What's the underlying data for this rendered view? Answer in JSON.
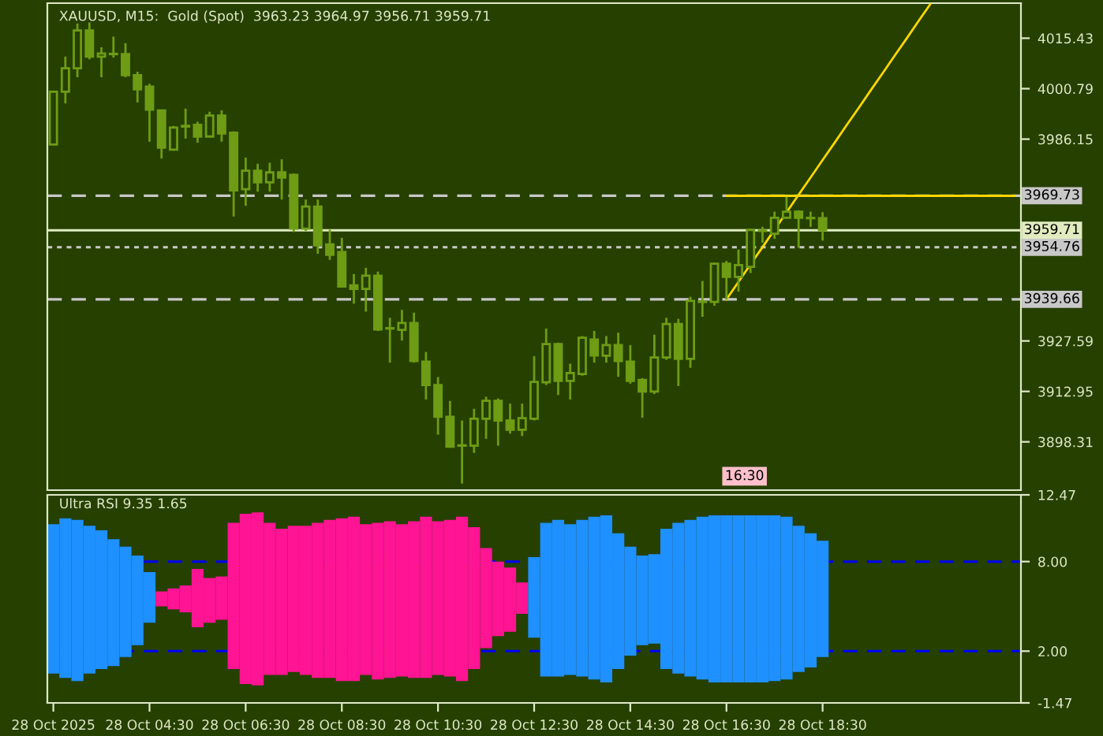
{
  "chart_data": [
    {
      "type": "candlestick",
      "title": "XAUUSD, M15:  Gold (Spot)  3963.23 3964.97 3956.71 3959.71",
      "color": "#6e9c14",
      "tick_labels": "y",
      "categories": [
        null,
        null,
        null,
        null,
        null,
        null,
        null,
        null,
        null,
        null,
        null,
        null,
        null,
        null,
        null,
        null,
        null,
        null,
        null,
        null,
        null,
        null,
        null,
        null,
        null,
        null,
        null,
        null,
        null,
        null,
        null,
        null,
        null,
        null,
        null,
        null,
        null,
        null,
        null,
        null,
        null,
        null,
        null,
        null,
        null,
        null,
        null,
        null,
        null,
        null,
        null,
        null,
        null,
        null,
        null,
        null,
        null,
        null,
        null,
        null,
        null,
        null,
        null,
        null,
        null,
        null,
        null,
        null,
        null,
        null,
        null,
        null,
        null,
        null,
        null,
        null,
        null,
        null,
        null,
        null,
        null
      ],
      "ohlc": [
        [
          3984.6,
          3999.9,
          3984.6,
          3999.9
        ],
        [
          3999.9,
          4010.1,
          3996.5,
          4006.7
        ],
        [
          4006.7,
          4019.7,
          4004.1,
          4017.7
        ],
        [
          4017.7,
          4020.0,
          4009.3,
          4010.1
        ],
        [
          4010.1,
          4012.8,
          4004.1,
          4011.0
        ],
        [
          4010.8,
          4015.9,
          4009.8,
          4010.9
        ],
        [
          4010.8,
          4014.0,
          4004.1,
          4004.7
        ],
        [
          4004.7,
          4005.7,
          3996.8,
          4000.6
        ],
        [
          4001.4,
          4002.2,
          3985.4,
          3994.7
        ],
        [
          3994.5,
          3994.5,
          3980.5,
          3983.7
        ],
        [
          3983.1,
          3990.0,
          3982.8,
          3989.5
        ],
        [
          3989.8,
          3995.0,
          3986.3,
          3990.0
        ],
        [
          3990.3,
          3991.2,
          3985.1,
          3986.9
        ],
        [
          3986.9,
          3994.1,
          3986.9,
          3993.0
        ],
        [
          3993.0,
          3994.5,
          3985.4,
          3987.8
        ],
        [
          3988.0,
          3988.4,
          3963.7,
          3971.3
        ],
        [
          3971.6,
          3980.8,
          3966.8,
          3977.0
        ],
        [
          3977.0,
          3979.0,
          3970.9,
          3973.6
        ],
        [
          3973.6,
          3979.3,
          3970.9,
          3976.5
        ],
        [
          3976.5,
          3980.3,
          3968.6,
          3975.0
        ],
        [
          3975.8,
          3976.2,
          3959.2,
          3960.2
        ],
        [
          3960.2,
          3968.6,
          3959.5,
          3966.6
        ],
        [
          3966.6,
          3968.6,
          3952.9,
          3955.3
        ],
        [
          3955.6,
          3959.9,
          3951.1,
          3952.6
        ],
        [
          3953.4,
          3957.5,
          3943.4,
          3943.4
        ],
        [
          3943.7,
          3947.0,
          3938.4,
          3942.7
        ],
        [
          3942.7,
          3948.8,
          3936.1,
          3946.5
        ],
        [
          3946.5,
          3947.7,
          3930.5,
          3930.9
        ],
        [
          3931.2,
          3934.3,
          3921.3,
          3931.3
        ],
        [
          3930.8,
          3936.6,
          3927.7,
          3932.8
        ],
        [
          3932.8,
          3935.8,
          3921.3,
          3921.8
        ],
        [
          3921.6,
          3924.4,
          3910.6,
          3914.8
        ],
        [
          3914.8,
          3917.1,
          3900.4,
          3905.6
        ],
        [
          3905.6,
          3910.2,
          3896.6,
          3896.9
        ],
        [
          3897.2,
          3904.5,
          3886.2,
          3897.3
        ],
        [
          3897.2,
          3907.9,
          3895.1,
          3905.0
        ],
        [
          3905.0,
          3911.4,
          3899.2,
          3910.2
        ],
        [
          3910.2,
          3910.9,
          3897.2,
          3904.5
        ],
        [
          3904.5,
          3909.4,
          3900.7,
          3901.8
        ],
        [
          3901.8,
          3909.4,
          3900.0,
          3905.2
        ],
        [
          3905.0,
          3923.2,
          3904.5,
          3915.7
        ],
        [
          3915.6,
          3931.2,
          3914.8,
          3926.7
        ],
        [
          3926.7,
          3927.1,
          3911.9,
          3916.0
        ],
        [
          3916.0,
          3921.0,
          3910.6,
          3918.3
        ],
        [
          3918.0,
          3929.0,
          3917.5,
          3928.5
        ],
        [
          3928.0,
          3930.5,
          3921.3,
          3923.4
        ],
        [
          3923.3,
          3929.0,
          3921.3,
          3926.4
        ],
        [
          3926.4,
          3930.0,
          3917.2,
          3921.8
        ],
        [
          3921.6,
          3926.4,
          3915.2,
          3916.0
        ],
        [
          3916.3,
          3916.8,
          3905.3,
          3912.9
        ],
        [
          3912.9,
          3929.4,
          3912.2,
          3922.8
        ],
        [
          3922.8,
          3934.3,
          3922.1,
          3932.5
        ],
        [
          3932.5,
          3934.0,
          3914.5,
          3922.4
        ],
        [
          3922.4,
          3940.4,
          3919.8,
          3939.2
        ],
        [
          3938.9,
          3945.0,
          3934.6,
          3939.0
        ],
        [
          3938.9,
          3950.3,
          3937.8,
          3950.0
        ],
        [
          3950.0,
          3950.8,
          3939.6,
          3946.2
        ],
        [
          3946.2,
          3954.1,
          3941.9,
          3949.6
        ],
        [
          3949.1,
          3960.2,
          3947.3,
          3959.8
        ],
        [
          3959.5,
          3960.7,
          3956.1,
          3959.6
        ],
        [
          3958.7,
          3965.1,
          3957.2,
          3963.3
        ],
        [
          3963.3,
          3969.4,
          3963.1,
          3965.1
        ],
        [
          3965.1,
          3965.5,
          3954.6,
          3963.3
        ],
        [
          3963.3,
          3965.1,
          3960.7,
          3963.2
        ],
        [
          3963.23,
          3964.97,
          3956.71,
          3959.71
        ],
        null,
        null,
        null,
        null,
        null,
        null,
        null,
        null,
        null,
        null,
        null,
        null,
        null,
        null,
        null,
        null
      ],
      "ylim": [
        3884.3,
        4025.6
      ],
      "yticks": [
        4015.43,
        4000.79,
        3986.15,
        3927.59,
        3912.95,
        3898.31
      ],
      "ref_lines": [
        {
          "axis": "y",
          "value": 3969.73,
          "label": "3969.73",
          "color": "#c8c8c8",
          "line_style": "dashed"
        },
        {
          "axis": "y",
          "value": 3959.71,
          "label": "3959.71",
          "color": "#e0ecc0",
          "line_style": "solid"
        },
        {
          "axis": "y",
          "value": 3954.76,
          "label": "3954.76",
          "color": "#c8c8c8",
          "line_style": "dotted"
        },
        {
          "axis": "y",
          "value": 3939.66,
          "label": "3939.66",
          "color": "#c8c8c8",
          "line_style": "dashed"
        }
      ],
      "series": [
        {
          "type": "line",
          "color": "#ffd700",
          "values": [
            null,
            null,
            null,
            null,
            null,
            null,
            null,
            null,
            null,
            null,
            null,
            null,
            null,
            null,
            null,
            null,
            null,
            null,
            null,
            null,
            null,
            null,
            null,
            null,
            null,
            null,
            null,
            null,
            null,
            null,
            null,
            null,
            null,
            null,
            null,
            null,
            null,
            null,
            null,
            null,
            null,
            null,
            null,
            null,
            null,
            null,
            null,
            null,
            null,
            null,
            null,
            null,
            null,
            null,
            null,
            null,
            3939.7,
            3944.7,
            3949.8,
            3954.8,
            3959.9,
            3964.9,
            3970.0,
            3975.0,
            3980.1,
            3985.1,
            3990.2,
            3995.2,
            4000.3,
            4005.3,
            4010.4,
            4015.4,
            4020.5,
            4025.5,
            null,
            null,
            null,
            null,
            null,
            null,
            null
          ]
        },
        {
          "type": "line",
          "color": "#ffd700",
          "values": [
            null,
            null,
            null,
            null,
            null,
            null,
            null,
            null,
            null,
            null,
            null,
            null,
            null,
            null,
            null,
            null,
            null,
            null,
            null,
            null,
            null,
            null,
            null,
            null,
            null,
            null,
            null,
            null,
            null,
            null,
            null,
            null,
            null,
            null,
            null,
            null,
            null,
            null,
            null,
            null,
            null,
            null,
            null,
            null,
            null,
            null,
            null,
            null,
            null,
            null,
            null,
            null,
            null,
            null,
            null,
            null,
            3969.7,
            3969.7,
            3969.7,
            3969.7,
            3969.7,
            3969.7,
            3969.7,
            3969.7,
            3969.7,
            3969.7,
            3969.7,
            3969.7,
            3969.7,
            3969.7,
            3969.7,
            3969.7,
            3969.7,
            3969.7,
            3969.7,
            3969.7,
            3969.7,
            3969.7,
            3969.7,
            3969.7,
            3969.7
          ]
        }
      ],
      "annotations": [
        "16:30"
      ]
    },
    {
      "type": "bar",
      "title": "Ultra RSI 9.35 1.65",
      "ylim": [
        -1.47,
        12.47
      ],
      "categories": [
        "28 Oct 2025",
        null,
        null,
        null,
        null,
        null,
        null,
        null,
        "28 Oct 04:30",
        null,
        null,
        null,
        null,
        null,
        null,
        null,
        "28 Oct 06:30",
        null,
        null,
        null,
        null,
        null,
        null,
        null,
        "28 Oct 08:30",
        null,
        null,
        null,
        null,
        null,
        null,
        null,
        "28 Oct 10:30",
        null,
        null,
        null,
        null,
        null,
        null,
        null,
        "28 Oct 12:30",
        null,
        null,
        null,
        null,
        null,
        null,
        null,
        "28 Oct 14:30",
        null,
        null,
        null,
        null,
        null,
        null,
        null,
        "28 Oct 16:30",
        null,
        null,
        null,
        null,
        null,
        null,
        null,
        "28 Oct 18:30",
        null,
        null,
        null,
        null,
        null,
        null,
        null,
        null,
        null,
        null,
        null,
        null,
        null,
        null,
        null,
        null
      ],
      "yticks": [
        12.47,
        {
          "value": 8,
          "label": "8.00"
        },
        {
          "value": 2,
          "label": "2.00"
        },
        -1.47
      ],
      "ref_lines": [
        {
          "axis": "y",
          "value": 8,
          "color": "#0000ff",
          "line_style": "dashed"
        },
        {
          "axis": "y",
          "value": 2,
          "color": "#0000ff",
          "line_style": "dashed"
        }
      ],
      "base": [
        0.5,
        0.2,
        0.0,
        0.5,
        0.8,
        1.0,
        1.6,
        2.4,
        3.9,
        5.0,
        4.8,
        4.6,
        3.6,
        3.9,
        4.1,
        0.8,
        -0.2,
        -0.3,
        0.4,
        0.4,
        0.6,
        0.4,
        0.2,
        0.2,
        0.0,
        0.0,
        0.4,
        0.1,
        0.2,
        0.3,
        0.2,
        0.2,
        0.4,
        0.3,
        0.0,
        0.8,
        2.2,
        3.0,
        3.3,
        4.5,
        2.9,
        0.3,
        0.3,
        0.4,
        0.3,
        0.1,
        -0.1,
        0.8,
        1.7,
        2.4,
        2.5,
        0.8,
        0.5,
        0.3,
        0.1,
        -0.1,
        -0.1,
        -0.1,
        -0.1,
        -0.1,
        0.0,
        0.1,
        0.6,
        0.9,
        1.6,
        null,
        null,
        null,
        null,
        null,
        null,
        null,
        null,
        null,
        null,
        null,
        null,
        null,
        null,
        null,
        null
      ],
      "values": [
        10.0,
        10.7,
        10.8,
        9.9,
        9.3,
        8.5,
        7.4,
        6.0,
        3.4,
        1.0,
        1.4,
        1.8,
        3.9,
        3.0,
        2.9,
        9.8,
        11.4,
        11.6,
        10.2,
        9.8,
        9.8,
        10.0,
        10.4,
        10.6,
        10.9,
        11.0,
        10.1,
        10.5,
        10.5,
        10.2,
        10.5,
        10.8,
        10.3,
        10.5,
        11.0,
        9.5,
        6.7,
        5.0,
        4.3,
        2.1,
        5.4,
        10.3,
        10.5,
        10.1,
        10.5,
        10.9,
        11.2,
        9.1,
        7.3,
        6.0,
        6.0,
        9.4,
        10.1,
        10.5,
        10.9,
        11.2,
        11.2,
        11.2,
        11.2,
        11.2,
        11.1,
        10.9,
        9.8,
        9.0,
        7.8,
        null,
        null,
        null,
        null,
        null,
        null,
        null,
        null,
        null,
        null,
        null,
        null,
        null,
        null,
        null,
        null
      ],
      "colors": [
        "#1e90ff",
        "#1e90ff",
        "#1e90ff",
        "#1e90ff",
        "#1e90ff",
        "#1e90ff",
        "#1e90ff",
        "#1e90ff",
        "#1e90ff",
        "#ff1493",
        "#ff1493",
        "#ff1493",
        "#ff1493",
        "#ff1493",
        "#ff1493",
        "#ff1493",
        "#ff1493",
        "#ff1493",
        "#ff1493",
        "#ff1493",
        "#ff1493",
        "#ff1493",
        "#ff1493",
        "#ff1493",
        "#ff1493",
        "#ff1493",
        "#ff1493",
        "#ff1493",
        "#ff1493",
        "#ff1493",
        "#ff1493",
        "#ff1493",
        "#ff1493",
        "#ff1493",
        "#ff1493",
        "#ff1493",
        "#ff1493",
        "#ff1493",
        "#ff1493",
        "#ff1493",
        "#1e90ff",
        "#1e90ff",
        "#1e90ff",
        "#1e90ff",
        "#1e90ff",
        "#1e90ff",
        "#1e90ff",
        "#1e90ff",
        "#1e90ff",
        "#1e90ff",
        "#1e90ff",
        "#1e90ff",
        "#1e90ff",
        "#1e90ff",
        "#1e90ff",
        "#1e90ff",
        "#1e90ff",
        "#1e90ff",
        "#1e90ff",
        "#1e90ff",
        "#1e90ff",
        "#1e90ff",
        "#1e90ff",
        "#1e90ff",
        "#1e90ff",
        null,
        null,
        null,
        null,
        null,
        null,
        null,
        null,
        null,
        null,
        null,
        null,
        null,
        null,
        null,
        null
      ]
    }
  ]
}
